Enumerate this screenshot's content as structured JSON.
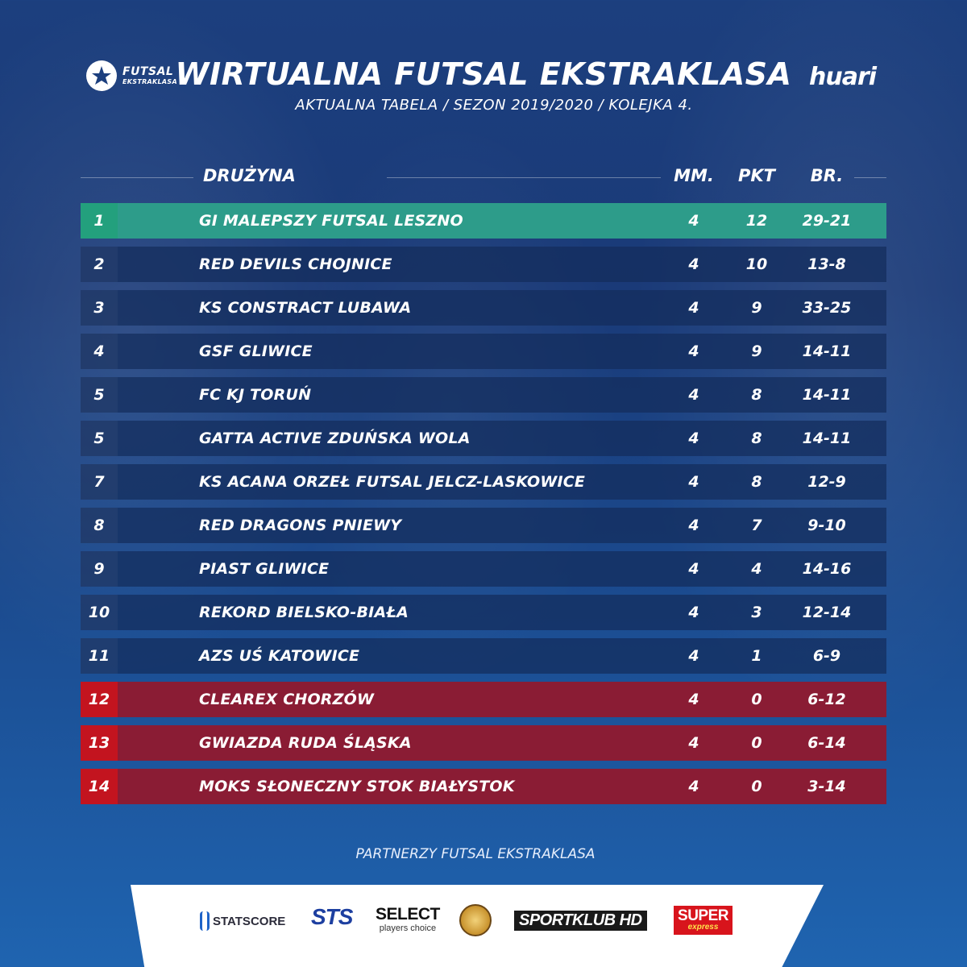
{
  "header": {
    "logo_line1": "FUTSAL",
    "logo_line2": "EKSTRAKLASA",
    "title": "WIRTUALNA FUTSAL EKSTRAKLASA",
    "subtitle": "AKTUALNA TABELA  /  SEZON 2019/2020  /  KOLEJKA 4.",
    "brand_right": "huari"
  },
  "table": {
    "columns": {
      "team": "DRUŻYNA",
      "mm": "MM.",
      "pkt": "PKT",
      "br": "BR."
    },
    "rows": [
      {
        "pos": "1",
        "team": "GI MALEPSZY FUTSAL LESZNO",
        "mm": "4",
        "pkt": "12",
        "br": "29-21",
        "zone": "leader"
      },
      {
        "pos": "2",
        "team": "RED DEVILS CHOJNICE",
        "mm": "4",
        "pkt": "10",
        "br": "13-8",
        "zone": "normal"
      },
      {
        "pos": "3",
        "team": "KS CONSTRACT LUBAWA",
        "mm": "4",
        "pkt": "9",
        "br": "33-25",
        "zone": "normal"
      },
      {
        "pos": "4",
        "team": "GSF GLIWICE",
        "mm": "4",
        "pkt": "9",
        "br": "14-11",
        "zone": "normal"
      },
      {
        "pos": "5",
        "team": "FC KJ TORUŃ",
        "mm": "4",
        "pkt": "8",
        "br": "14-11",
        "zone": "normal"
      },
      {
        "pos": "5",
        "team": "GATTA ACTIVE ZDUŃSKA WOLA",
        "mm": "4",
        "pkt": "8",
        "br": "14-11",
        "zone": "normal"
      },
      {
        "pos": "7",
        "team": "KS ACANA ORZEŁ FUTSAL JELCZ-LASKOWICE",
        "mm": "4",
        "pkt": "8",
        "br": "12-9",
        "zone": "normal"
      },
      {
        "pos": "8",
        "team": "RED DRAGONS PNIEWY",
        "mm": "4",
        "pkt": "7",
        "br": "9-10",
        "zone": "normal"
      },
      {
        "pos": "9",
        "team": "PIAST GLIWICE",
        "mm": "4",
        "pkt": "4",
        "br": "14-16",
        "zone": "normal"
      },
      {
        "pos": "10",
        "team": "REKORD BIELSKO-BIAŁA",
        "mm": "4",
        "pkt": "3",
        "br": "12-14",
        "zone": "normal"
      },
      {
        "pos": "11",
        "team": "AZS UŚ KATOWICE",
        "mm": "4",
        "pkt": "1",
        "br": "6-9",
        "zone": "normal"
      },
      {
        "pos": "12",
        "team": "CLEAREX CHORZÓW",
        "mm": "4",
        "pkt": "0",
        "br": "6-12",
        "zone": "relegation"
      },
      {
        "pos": "13",
        "team": "GWIAZDA RUDA ŚLĄSKA",
        "mm": "4",
        "pkt": "0",
        "br": "6-14",
        "zone": "relegation"
      },
      {
        "pos": "14",
        "team": "MOKS SŁONECZNY STOK BIAŁYSTOK",
        "mm": "4",
        "pkt": "0",
        "br": "3-14",
        "zone": "relegation"
      }
    ]
  },
  "partners": {
    "label": "PARTNERZY FUTSAL EKSTRAKLASA",
    "statscore": "STATSCORE",
    "sts": "STS",
    "select_main": "SELECT",
    "select_sub": "players choice",
    "sportklub": "SPORTKLUB HD",
    "super_main": "SUPER",
    "super_sub": "express"
  },
  "colors": {
    "leader_row": "#2d9c8a",
    "relegation_row": "#8a1c34",
    "relegation_pos": "#c3141f",
    "normal_row": "#142c5c"
  }
}
